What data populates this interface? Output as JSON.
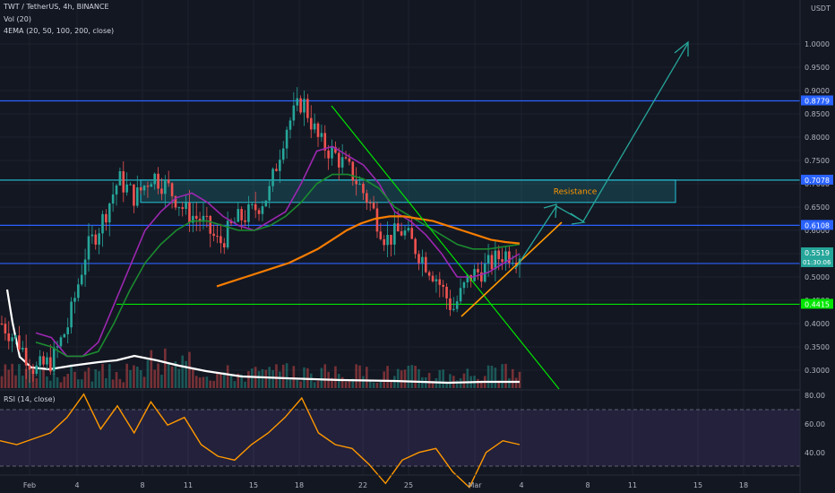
{
  "header": {
    "symbol_line": "TWT / TetherUS, 4h, BINANCE",
    "vol_line": "Vol (20)",
    "ema_line": "4EMA (20, 50, 100, 200, close)",
    "currency": "USDT"
  },
  "rsi_panel": {
    "label": "RSI (14, close)",
    "ticks": [
      "80.00",
      "60.00",
      "40.00"
    ]
  },
  "annotations": {
    "resistance_label": "Resistance"
  },
  "colors": {
    "background": "#131722",
    "blue_level": "#2962ff",
    "green_level": "#00e600",
    "cyan_zone": "#26c6da",
    "ema_purple": "#9c27b0",
    "ema_green": "#1b8a2f",
    "ema_orange": "#f57c00",
    "candle_up": "#26a69a",
    "candle_down": "#ef5350",
    "rsi_line": "#ff9800",
    "rsi_band": "#7e57c2",
    "projection": "#26a69a"
  },
  "chart_data": {
    "type": "candlestick",
    "price_axis": {
      "ticks": [
        "1.0000",
        "0.9500",
        "0.9000",
        "0.8500",
        "0.8000",
        "0.7500",
        "0.7000",
        "0.6500",
        "0.6000",
        "0.5500",
        "0.5000",
        "0.4500",
        "0.4000",
        "0.3500",
        "0.3000"
      ],
      "range": [
        0.26,
        1.08
      ]
    },
    "time_axis": {
      "labels": [
        "Feb",
        "4",
        "8",
        "11",
        "15",
        "18",
        "22",
        "25",
        "Mar",
        "4",
        "8",
        "11",
        "15",
        "18"
      ]
    },
    "price_labels": [
      {
        "text": "0.8779",
        "value": 0.8779,
        "color": "#2962ff"
      },
      {
        "text": "0.7078",
        "value": 0.7078,
        "color": "#2962ff"
      },
      {
        "text": "0.6108",
        "value": 0.6108,
        "color": "#2962ff"
      },
      {
        "text": "0.5519",
        "value": 0.5519,
        "color": "#26a69a",
        "sub": "01:30:06"
      },
      {
        "text": "0.4415",
        "value": 0.4415,
        "color": "#00e600"
      }
    ],
    "horizontal_levels": [
      {
        "value": 0.8779,
        "color": "blue"
      },
      {
        "value": 0.7078,
        "color": "cyan"
      },
      {
        "value": 0.6108,
        "color": "blue"
      },
      {
        "value": 0.529,
        "color": "blue"
      },
      {
        "value": 0.4415,
        "color": "green"
      }
    ],
    "resistance_zone": {
      "low": 0.66,
      "high": 0.708
    },
    "price_path": [
      0.4,
      0.36,
      0.3,
      0.32,
      0.4,
      0.55,
      0.62,
      0.71,
      0.67,
      0.72,
      0.69,
      0.64,
      0.62,
      0.57,
      0.62,
      0.64,
      0.68,
      0.82,
      0.88,
      0.79,
      0.76,
      0.72,
      0.66,
      0.58,
      0.6,
      0.55,
      0.5,
      0.43,
      0.5,
      0.52,
      0.55,
      0.5519
    ],
    "ema_20": [
      0.38,
      0.37,
      0.33,
      0.33,
      0.36,
      0.44,
      0.52,
      0.6,
      0.64,
      0.67,
      0.68,
      0.66,
      0.63,
      0.61,
      0.6,
      0.62,
      0.64,
      0.7,
      0.77,
      0.78,
      0.76,
      0.74,
      0.7,
      0.64,
      0.62,
      0.59,
      0.55,
      0.5,
      0.5,
      0.51,
      0.53,
      0.55
    ],
    "ema_50": [
      0.36,
      0.35,
      0.33,
      0.33,
      0.34,
      0.4,
      0.47,
      0.53,
      0.57,
      0.6,
      0.62,
      0.62,
      0.61,
      0.6,
      0.6,
      0.61,
      0.63,
      0.66,
      0.7,
      0.72,
      0.72,
      0.71,
      0.69,
      0.65,
      0.63,
      0.61,
      0.59,
      0.57,
      0.56,
      0.56,
      0.565,
      0.57
    ],
    "ema_orange": [
      0.48,
      0.49,
      0.5,
      0.51,
      0.52,
      0.53,
      0.545,
      0.56,
      0.58,
      0.6,
      0.615,
      0.625,
      0.63,
      0.63,
      0.625,
      0.62,
      0.61,
      0.6,
      0.59,
      0.58,
      0.575,
      0.572
    ],
    "rsi": [
      54,
      52,
      55,
      58,
      66,
      78,
      60,
      72,
      58,
      74,
      62,
      66,
      52,
      46,
      44,
      52,
      58,
      66,
      76,
      58,
      52,
      50,
      42,
      32,
      44,
      48,
      50,
      38,
      30,
      48,
      54,
      52
    ]
  }
}
